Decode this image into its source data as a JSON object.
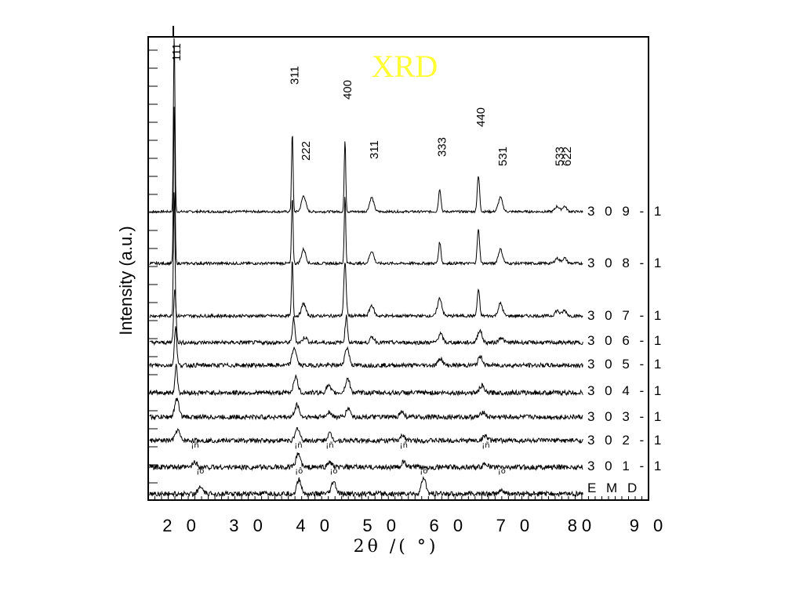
{
  "chart_data": {
    "type": "line",
    "title": "XRD",
    "xlabel": "2θ /( °)",
    "ylabel": "Intensity (a.u.)",
    "xlim": [
      15,
      90
    ],
    "x_ticks": [
      20,
      30,
      40,
      50,
      60,
      70,
      80,
      90
    ],
    "x_tick_labels": [
      "2 0",
      "3 0",
      "4 0",
      "5 0",
      "6 0",
      "7 0",
      "80",
      "9 0"
    ],
    "reflections": [
      {
        "hkl": "111",
        "x": 18.9
      },
      {
        "hkl": "311",
        "x": 36.6
      },
      {
        "hkl": "222",
        "x": 38.3
      },
      {
        "hkl": "400",
        "x": 44.5
      },
      {
        "hkl": "311",
        "x": 48.5
      },
      {
        "hkl": "333",
        "x": 58.7
      },
      {
        "hkl": "440",
        "x": 64.5
      },
      {
        "hkl": "531",
        "x": 67.8
      },
      {
        "hkl": "533",
        "x": 76.3
      },
      {
        "hkl": "622",
        "x": 77.4
      }
    ],
    "markers": [
      {
        "text": "¡ñ",
        "x": 22.0,
        "row": "301-1"
      },
      {
        "text": "¡ñ",
        "x": 37.5,
        "row": "301-1"
      },
      {
        "text": "¡ñ",
        "x": 42.2,
        "row": "301-1"
      },
      {
        "text": "¡ñ",
        "x": 53.3,
        "row": "301-1"
      },
      {
        "text": "¡ñ",
        "x": 65.6,
        "row": "301-1"
      },
      {
        "text": "¡ô",
        "x": 22.8,
        "row": "EMD"
      },
      {
        "text": "¡ô",
        "x": 37.6,
        "row": "EMD"
      },
      {
        "text": "¡ô",
        "x": 42.8,
        "row": "EMD"
      },
      {
        "text": "¡ô",
        "x": 56.3,
        "row": "EMD"
      },
      {
        "text": "¡ô",
        "x": 68.0,
        "row": "EMD"
      }
    ],
    "series": [
      {
        "name": "3 0 9 - 1",
        "peaks": [
          [
            18.9,
            100
          ],
          [
            36.6,
            45
          ],
          [
            38.3,
            9
          ],
          [
            44.5,
            41
          ],
          [
            48.5,
            8
          ],
          [
            58.7,
            13
          ],
          [
            64.5,
            20
          ],
          [
            67.8,
            8
          ],
          [
            76.3,
            3
          ],
          [
            77.4,
            3
          ]
        ],
        "noise": 0.6
      },
      {
        "name": "3 0 8 - 1",
        "peaks": [
          [
            18.9,
            90
          ],
          [
            36.6,
            38
          ],
          [
            38.3,
            8
          ],
          [
            44.5,
            38
          ],
          [
            48.5,
            7
          ],
          [
            58.7,
            12
          ],
          [
            64.5,
            19
          ],
          [
            67.8,
            8
          ],
          [
            76.3,
            3
          ],
          [
            77.4,
            3
          ]
        ],
        "noise": 0.7
      },
      {
        "name": "3 0 7 - 1",
        "peaks": [
          [
            18.9,
            72
          ],
          [
            36.6,
            32
          ],
          [
            38.3,
            7
          ],
          [
            44.5,
            30
          ],
          [
            48.5,
            6
          ],
          [
            58.7,
            10
          ],
          [
            64.5,
            15
          ],
          [
            67.8,
            7
          ],
          [
            76.3,
            3
          ],
          [
            77.4,
            3
          ]
        ],
        "noise": 0.8
      },
      {
        "name": "3 0 6 - 1",
        "peaks": [
          [
            19.0,
            30
          ],
          [
            36.8,
            14
          ],
          [
            38.5,
            3
          ],
          [
            44.7,
            15
          ],
          [
            48.6,
            3
          ],
          [
            58.8,
            5
          ],
          [
            64.7,
            7
          ],
          [
            67.9,
            3
          ]
        ],
        "noise": 1.0
      },
      {
        "name": "3 0 5 - 1",
        "peaks": [
          [
            19.1,
            22
          ],
          [
            36.9,
            10
          ],
          [
            44.8,
            10
          ],
          [
            58.8,
            4
          ],
          [
            64.8,
            5
          ]
        ],
        "noise": 1.1
      },
      {
        "name": "3 0 4 - 1",
        "peaks": [
          [
            19.2,
            16
          ],
          [
            37.1,
            9
          ],
          [
            42.0,
            4
          ],
          [
            44.9,
            8
          ],
          [
            65.0,
            4
          ]
        ],
        "noise": 1.2
      },
      {
        "name": "3 0 3 - 1",
        "peaks": [
          [
            19.3,
            10
          ],
          [
            37.3,
            7
          ],
          [
            42.1,
            3
          ],
          [
            45.0,
            5
          ],
          [
            53.0,
            3
          ],
          [
            65.2,
            3
          ]
        ],
        "noise": 1.2
      },
      {
        "name": "3 0 2 - 1",
        "peaks": [
          [
            19.4,
            6
          ],
          [
            37.4,
            7
          ],
          [
            42.2,
            4
          ],
          [
            53.2,
            3
          ],
          [
            65.5,
            3
          ]
        ],
        "noise": 1.2
      },
      {
        "name": "3 0 1 - 1",
        "peaks": [
          [
            22.0,
            3
          ],
          [
            37.5,
            8
          ],
          [
            42.2,
            3
          ],
          [
            53.3,
            3
          ],
          [
            65.6,
            2
          ]
        ],
        "noise": 1.3
      },
      {
        "name": "E M D",
        "peaks": [
          [
            22.8,
            4
          ],
          [
            37.6,
            8
          ],
          [
            42.8,
            7
          ],
          [
            56.3,
            9
          ],
          [
            68.0,
            2
          ]
        ],
        "noise": 1.3
      }
    ]
  }
}
